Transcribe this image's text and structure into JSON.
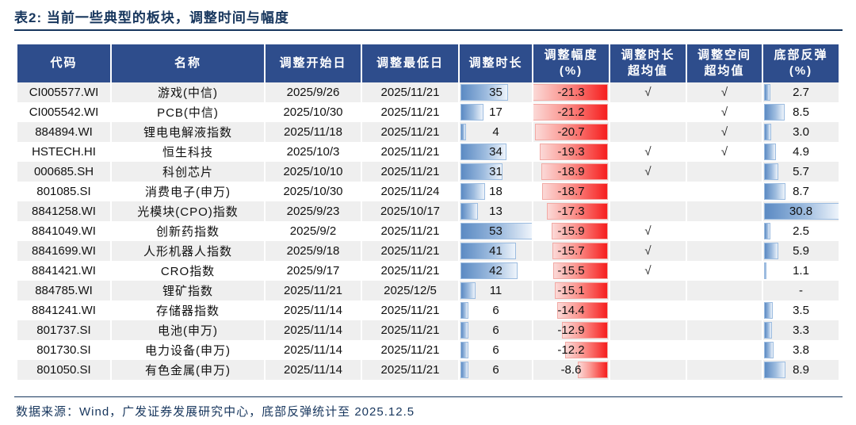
{
  "title": "表2:  当前一些典型的板块，调整时间与幅度",
  "footer": "数据来源：Wind，广发证券发展研究中心，底部反弹统计至 2025.12.5",
  "colors": {
    "header_bg": "#2E4D8C",
    "title_text": "#17365D",
    "row_stripe": "#EFEFEF",
    "bar_blue": "#5B8AC3",
    "bar_red": "#F61E1E"
  },
  "table": {
    "columns": [
      {
        "label": "代码",
        "label2": ""
      },
      {
        "label": "名称",
        "label2": ""
      },
      {
        "label": "调整开始日",
        "label2": ""
      },
      {
        "label": "调整最低日",
        "label2": ""
      },
      {
        "label": "调整时长",
        "label2": ""
      },
      {
        "label": "调整幅度",
        "label2": "(%)"
      },
      {
        "label": "调整时长",
        "label2": "超均值"
      },
      {
        "label": "调整空间",
        "label2": "超均值"
      },
      {
        "label": "底部反弹",
        "label2": "(%)"
      }
    ],
    "bar_scales": {
      "duration": 53,
      "magnitude": 21.3,
      "rebound": 30.8
    },
    "rows": [
      {
        "code": "CI005577.WI",
        "name": "游戏(中信)",
        "start": "2025/9/26",
        "low": "2025/11/21",
        "duration": "35",
        "magnitude": "-21.3",
        "over_duration": "√",
        "over_space": "√",
        "rebound": "2.7"
      },
      {
        "code": "CI005542.WI",
        "name": "PCB(中信)",
        "start": "2025/10/30",
        "low": "2025/11/21",
        "duration": "17",
        "magnitude": "-21.2",
        "over_duration": "",
        "over_space": "√",
        "rebound": "8.5"
      },
      {
        "code": "884894.WI",
        "name": "锂电电解液指数",
        "start": "2025/11/18",
        "low": "2025/11/21",
        "duration": "4",
        "magnitude": "-20.7",
        "over_duration": "",
        "over_space": "√",
        "rebound": "3.0"
      },
      {
        "code": "HSTECH.HI",
        "name": "恒生科技",
        "start": "2025/10/3",
        "low": "2025/11/21",
        "duration": "34",
        "magnitude": "-19.3",
        "over_duration": "√",
        "over_space": "√",
        "rebound": "4.9"
      },
      {
        "code": "000685.SH",
        "name": "科创芯片",
        "start": "2025/10/10",
        "low": "2025/11/21",
        "duration": "31",
        "magnitude": "-18.9",
        "over_duration": "√",
        "over_space": "",
        "rebound": "5.7"
      },
      {
        "code": "801085.SI",
        "name": "消费电子(申万)",
        "start": "2025/10/30",
        "low": "2025/11/24",
        "duration": "18",
        "magnitude": "-18.7",
        "over_duration": "",
        "over_space": "",
        "rebound": "8.7"
      },
      {
        "code": "8841258.WI",
        "name": "光模块(CPO)指数",
        "start": "2025/9/23",
        "low": "2025/10/17",
        "duration": "13",
        "magnitude": "-17.3",
        "over_duration": "",
        "over_space": "",
        "rebound": "30.8"
      },
      {
        "code": "8841049.WI",
        "name": "创新药指数",
        "start": "2025/9/2",
        "low": "2025/11/21",
        "duration": "53",
        "magnitude": "-15.9",
        "over_duration": "√",
        "over_space": "",
        "rebound": "2.5"
      },
      {
        "code": "8841699.WI",
        "name": "人形机器人指数",
        "start": "2025/9/18",
        "low": "2025/11/21",
        "duration": "41",
        "magnitude": "-15.7",
        "over_duration": "√",
        "over_space": "",
        "rebound": "5.9"
      },
      {
        "code": "8841421.WI",
        "name": "CRO指数",
        "start": "2025/9/17",
        "low": "2025/11/21",
        "duration": "42",
        "magnitude": "-15.5",
        "over_duration": "√",
        "over_space": "",
        "rebound": "1.1"
      },
      {
        "code": "884785.WI",
        "name": "锂矿指数",
        "start": "2025/11/21",
        "low": "2025/12/5",
        "duration": "11",
        "magnitude": "-15.1",
        "over_duration": "",
        "over_space": "",
        "rebound": "-"
      },
      {
        "code": "8841241.WI",
        "name": "存储器指数",
        "start": "2025/11/14",
        "low": "2025/11/21",
        "duration": "6",
        "magnitude": "-14.4",
        "over_duration": "",
        "over_space": "",
        "rebound": "3.5"
      },
      {
        "code": "801737.SI",
        "name": "电池(申万)",
        "start": "2025/11/14",
        "low": "2025/11/21",
        "duration": "6",
        "magnitude": "-12.9",
        "over_duration": "",
        "over_space": "",
        "rebound": "3.3"
      },
      {
        "code": "801730.SI",
        "name": "电力设备(申万)",
        "start": "2025/11/14",
        "low": "2025/11/21",
        "duration": "6",
        "magnitude": "-12.2",
        "over_duration": "",
        "over_space": "",
        "rebound": "3.8"
      },
      {
        "code": "801050.SI",
        "name": "有色金属(申万)",
        "start": "2025/11/14",
        "low": "2025/11/21",
        "duration": "6",
        "magnitude": "-8.6",
        "over_duration": "",
        "over_space": "",
        "rebound": "8.9"
      }
    ]
  }
}
